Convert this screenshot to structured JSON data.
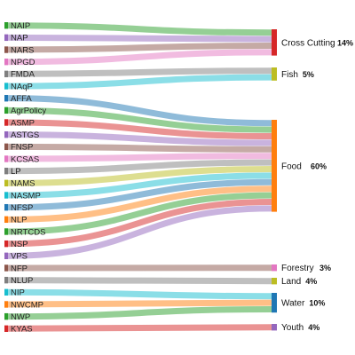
{
  "chart_data": {
    "type": "sankey",
    "targets": [
      {
        "id": "cross",
        "label": "Cross Cutting",
        "percent": "14%",
        "color": "#d62728"
      },
      {
        "id": "fish",
        "label": "Fish",
        "percent": "5%",
        "color": "#bcbd22"
      },
      {
        "id": "food",
        "label": "Food",
        "percent": "60%",
        "color": "#ff7f0e"
      },
      {
        "id": "forestry",
        "label": "Forestry",
        "percent": "3%",
        "color": "#e377c2"
      },
      {
        "id": "land",
        "label": "Land",
        "percent": "4%",
        "color": "#bcbd22"
      },
      {
        "id": "water",
        "label": "Water",
        "percent": "10%",
        "color": "#1f77b4"
      },
      {
        "id": "youth",
        "label": "Youth",
        "percent": "4%",
        "color": "#9467bd"
      }
    ],
    "sources": [
      {
        "label": "NAIP",
        "target": "cross",
        "color": "#2ca02c"
      },
      {
        "label": "NAP",
        "target": "cross",
        "color": "#9467bd"
      },
      {
        "label": "NARS",
        "target": "cross",
        "color": "#8c564b"
      },
      {
        "label": "NPGD",
        "target": "cross",
        "color": "#e377c2"
      },
      {
        "label": "FMDA",
        "target": "fish",
        "color": "#7f7f7f"
      },
      {
        "label": "NAqP",
        "target": "fish",
        "color": "#17becf"
      },
      {
        "label": "AFFA",
        "target": "food",
        "color": "#1f77b4"
      },
      {
        "label": "AgrPolicy",
        "target": "food",
        "color": "#2ca02c"
      },
      {
        "label": "ASMP",
        "target": "food",
        "color": "#d62728"
      },
      {
        "label": "ASTGS",
        "target": "food",
        "color": "#9467bd"
      },
      {
        "label": "FNSP",
        "target": "food",
        "color": "#8c564b"
      },
      {
        "label": "KCSAS",
        "target": "food",
        "color": "#e377c2"
      },
      {
        "label": "LP",
        "target": "food",
        "color": "#7f7f7f"
      },
      {
        "label": "NAMS",
        "target": "food",
        "color": "#bcbd22"
      },
      {
        "label": "NASMP",
        "target": "food",
        "color": "#17becf"
      },
      {
        "label": "NFSP",
        "target": "food",
        "color": "#1f77b4"
      },
      {
        "label": "NLP",
        "target": "food",
        "color": "#ff7f0e"
      },
      {
        "label": "NRTCDS",
        "target": "food",
        "color": "#2ca02c"
      },
      {
        "label": "NSP",
        "target": "food",
        "color": "#d62728"
      },
      {
        "label": "VPS",
        "target": "food",
        "color": "#9467bd"
      },
      {
        "label": "NFP",
        "target": "forestry",
        "color": "#8c564b"
      },
      {
        "label": "NLUP",
        "target": "land",
        "color": "#7f7f7f"
      },
      {
        "label": "NIP",
        "target": "water",
        "color": "#17becf"
      },
      {
        "label": "NWCMP",
        "target": "water",
        "color": "#ff7f0e"
      },
      {
        "label": "NWP",
        "target": "water",
        "color": "#2ca02c"
      },
      {
        "label": "KYAS",
        "target": "youth",
        "color": "#d62728"
      }
    ]
  }
}
